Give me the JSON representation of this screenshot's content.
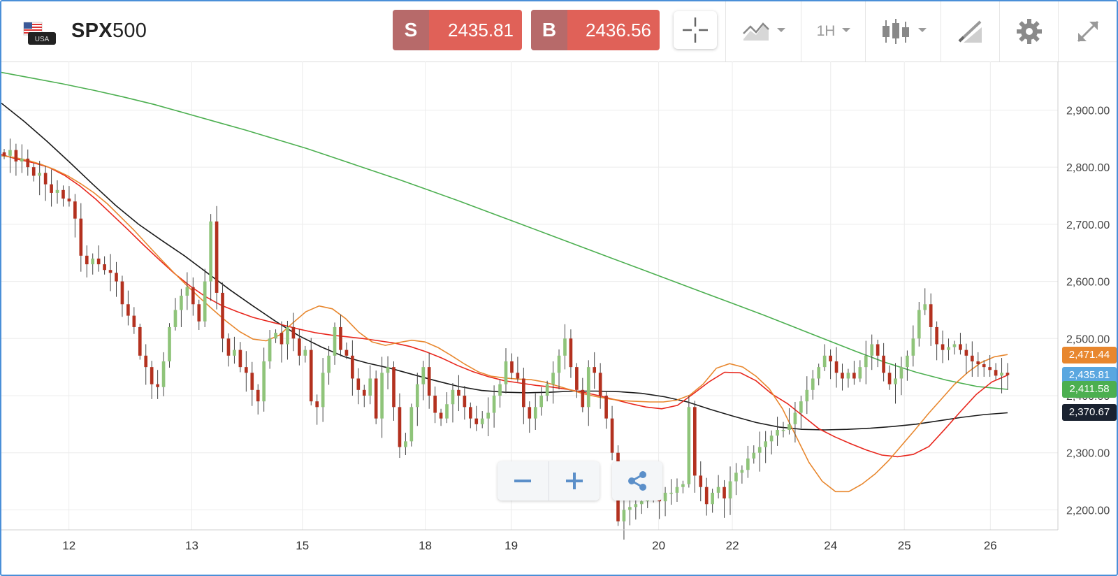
{
  "header": {
    "flag_text": "USA",
    "symbol_bold": "SPX",
    "symbol_rest": "500",
    "sell_tag": "S",
    "sell_price": "2435.81",
    "buy_tag": "B",
    "buy_price": "2436.56",
    "timeframe": "1H",
    "icons": [
      "crosshair-icon",
      "indicator-icon",
      "timeframe-dropdown",
      "candlestick-icon",
      "drawing-tool-icon",
      "gear-icon",
      "expand-icon"
    ]
  },
  "colors": {
    "up_candle": "#8fc47a",
    "down_candle": "#b3311f",
    "ma_fast": "#e8872e",
    "ma_mid": "#e8261c",
    "ma_slow": "#1a1a1a",
    "ma_long": "#4caf50",
    "grid": "#ececec"
  },
  "chart_data": {
    "type": "candlestick",
    "y_axis_ticks": [
      "2,200.00",
      "2,300.00",
      "2,400.00",
      "2,500.00",
      "2,600.00",
      "2,700.00",
      "2,800.00",
      "2,900.00"
    ],
    "ylim": [
      2165,
      2985
    ],
    "x_axis_ticks": [
      "12",
      "13",
      "15",
      "18",
      "19",
      "20",
      "22",
      "24",
      "25",
      "26"
    ],
    "x_tick_positions": [
      0.5,
      10.5,
      19.5,
      29.5,
      36.5,
      48.5,
      54.5,
      62.5,
      68.5,
      75.5
    ],
    "x_domain": [
      -5,
      81
    ],
    "price_labels": [
      {
        "text": "2,471.44",
        "value": 2471.44,
        "color": "#e8872e"
      },
      {
        "text": "2,435.81",
        "value": 2435.81,
        "color": "#5aa7e0"
      },
      {
        "text": "2,411.58",
        "value": 2411.58,
        "color": "#4caf50"
      },
      {
        "text": "2,370.67",
        "value": 2370.67,
        "color": "#1a2230"
      }
    ],
    "closes": [
      2820,
      2830,
      2810,
      2815,
      2800,
      2785,
      2790,
      2770,
      2755,
      2760,
      2745,
      2740,
      2710,
      2645,
      2630,
      2640,
      2630,
      2620,
      2615,
      2600,
      2560,
      2540,
      2520,
      2470,
      2450,
      2420,
      2415,
      2460,
      2520,
      2550,
      2575,
      2590,
      2560,
      2530,
      2600,
      2705,
      2580,
      2500,
      2470,
      2480,
      2450,
      2440,
      2410,
      2390,
      2460,
      2500,
      2510,
      2490,
      2520,
      2500,
      2470,
      2480,
      2390,
      2380,
      2440,
      2470,
      2520,
      2480,
      2470,
      2430,
      2410,
      2400,
      2430,
      2360,
      2440,
      2450,
      2380,
      2310,
      2320,
      2380,
      2420,
      2450,
      2400,
      2370,
      2360,
      2385,
      2410,
      2400,
      2380,
      2360,
      2350,
      2360,
      2370,
      2400,
      2420,
      2460,
      2440,
      2430,
      2380,
      2360,
      2380,
      2400,
      2420,
      2440,
      2470,
      2500,
      2450,
      2410,
      2380,
      2450,
      2440,
      2400,
      2360,
      2300,
      2180,
      2200,
      2205,
      2210,
      2215,
      2220,
      2225,
      2215,
      2230,
      2230,
      2240,
      2245,
      2380,
      2260,
      2240,
      2210,
      2230,
      2240,
      2220,
      2250,
      2265,
      2270,
      2290,
      2300,
      2310,
      2320,
      2330,
      2340,
      2340,
      2350,
      2370,
      2390,
      2410,
      2430,
      2450,
      2470,
      2460,
      2440,
      2430,
      2440,
      2430,
      2450,
      2470,
      2490,
      2470,
      2440,
      2420,
      2430,
      2450,
      2470,
      2500,
      2550,
      2560,
      2520,
      2490,
      2480,
      2485,
      2490,
      2480,
      2470,
      2460,
      2455,
      2450,
      2445,
      2435,
      2440,
      2436
    ],
    "ma_fast": [
      2820,
      2817,
      2812,
      2805,
      2796,
      2785,
      2771,
      2755,
      2736,
      2713,
      2690,
      2665,
      2640,
      2616,
      2593,
      2571,
      2550,
      2530,
      2512,
      2499,
      2496,
      2506,
      2527,
      2547,
      2557,
      2552,
      2535,
      2511,
      2494,
      2488,
      2493,
      2497,
      2494,
      2484,
      2470,
      2455,
      2442,
      2434,
      2431,
      2429,
      2428,
      2424,
      2417,
      2410,
      2403,
      2398,
      2394,
      2391,
      2390,
      2389,
      2389,
      2392,
      2401,
      2420,
      2448,
      2456,
      2450,
      2434,
      2412,
      2377,
      2330,
      2283,
      2250,
      2232,
      2232,
      2245,
      2263,
      2286,
      2313,
      2340,
      2368,
      2394,
      2420,
      2441,
      2458,
      2468,
      2472
    ],
    "ma_mid": [
      2822,
      2814,
      2808,
      2800,
      2786,
      2767,
      2744,
      2718,
      2692,
      2665,
      2639,
      2614,
      2592,
      2573,
      2558,
      2547,
      2537,
      2530,
      2523,
      2516,
      2510,
      2506,
      2503,
      2500,
      2496,
      2492,
      2486,
      2477,
      2466,
      2453,
      2442,
      2433,
      2426,
      2422,
      2418,
      2415,
      2411,
      2406,
      2400,
      2393,
      2386,
      2380,
      2377,
      2383,
      2403,
      2424,
      2441,
      2440,
      2426,
      2403,
      2386,
      2364,
      2342,
      2328,
      2316,
      2305,
      2296,
      2293,
      2297,
      2311,
      2341,
      2372,
      2402,
      2424,
      2436
    ],
    "ma_slow": [
      2912,
      2880,
      2845,
      2808,
      2770,
      2733,
      2700,
      2672,
      2645,
      2615,
      2585,
      2557,
      2530,
      2505,
      2485,
      2468,
      2457,
      2448,
      2437,
      2426,
      2416,
      2409,
      2406,
      2405,
      2406,
      2408,
      2408,
      2407,
      2404,
      2398,
      2389,
      2376,
      2364,
      2353,
      2345,
      2341,
      2340,
      2341,
      2343,
      2346,
      2350,
      2356,
      2362,
      2367,
      2370
    ],
    "ma_long": [
      2966,
      2956,
      2946,
      2935,
      2923,
      2910,
      2895,
      2880,
      2865,
      2849,
      2833,
      2815,
      2797,
      2779,
      2760,
      2741,
      2721,
      2701,
      2681,
      2661,
      2641,
      2621,
      2601,
      2581,
      2561,
      2541,
      2520,
      2499,
      2478,
      2458,
      2441,
      2427,
      2416,
      2411
    ]
  }
}
